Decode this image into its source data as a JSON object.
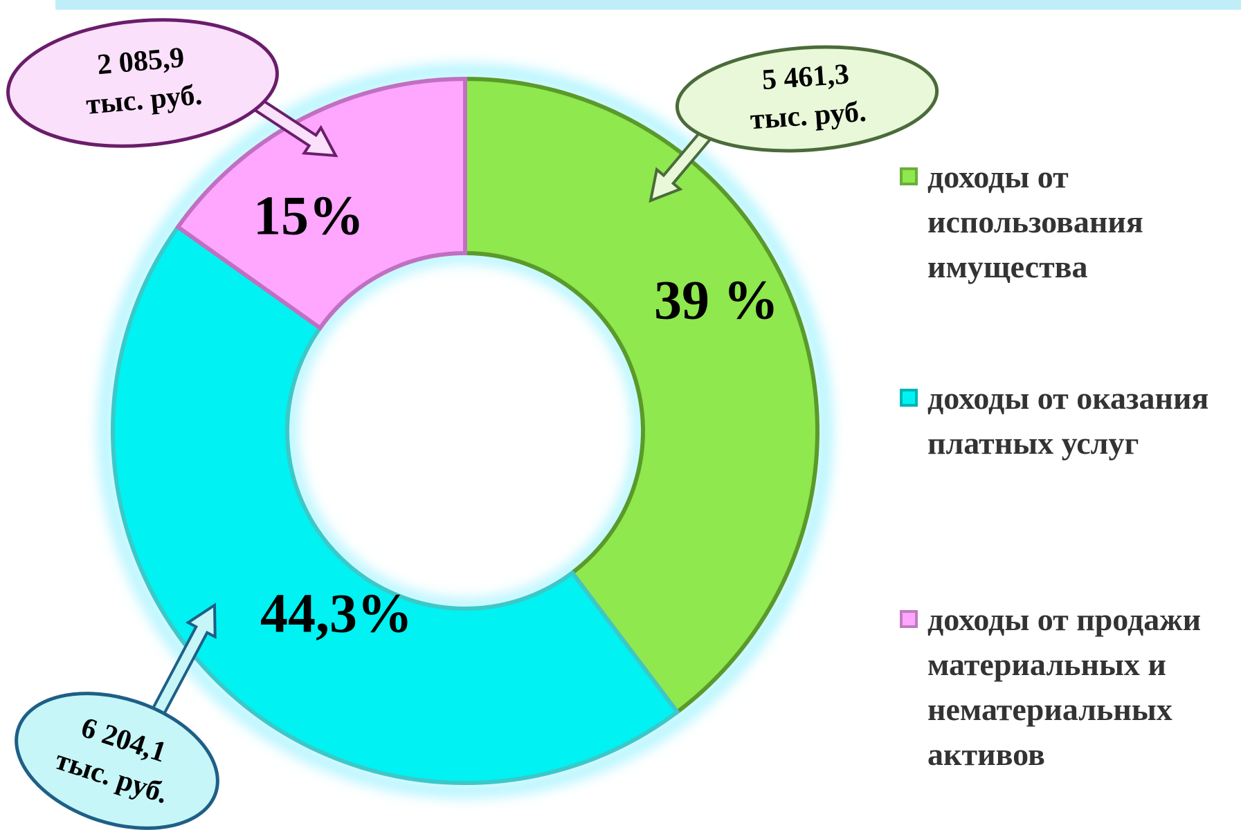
{
  "chart_data": {
    "type": "donut",
    "categories": [
      "доходы от использования имущества",
      "доходы от оказания платных услуг",
      "доходы от продажи материальных и нематериальных активов"
    ],
    "values": [
      5461.3,
      6204.1,
      2085.9
    ],
    "value_labels": [
      "5 461,3",
      "6 204,1",
      "2 085,9"
    ],
    "unit": "тыс. руб.",
    "percents": [
      39,
      44.3,
      15
    ],
    "percent_labels": [
      "39 %",
      "44,3%",
      "15%"
    ],
    "colors": [
      "#8ee84e",
      "#00f2f2",
      "#ffa6ff"
    ]
  }
}
